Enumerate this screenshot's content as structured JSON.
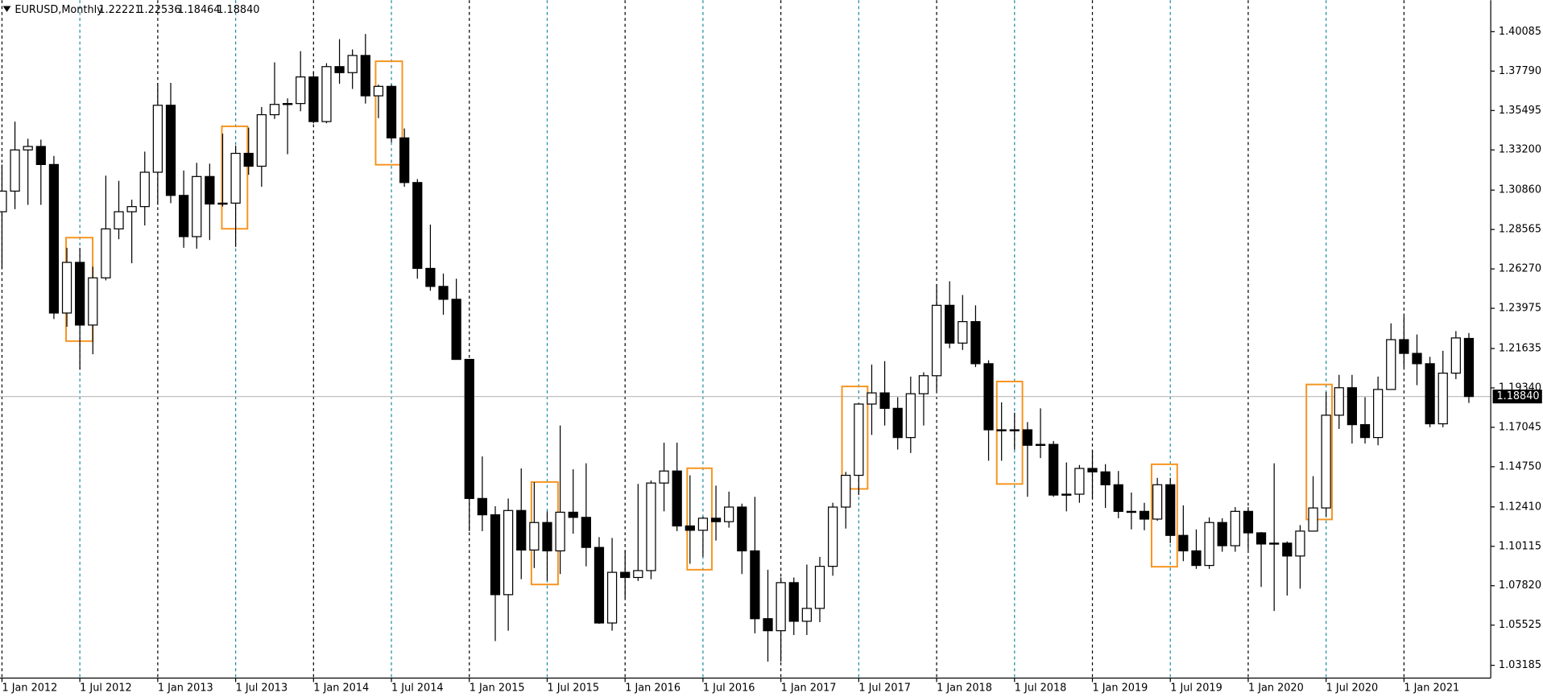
{
  "chart_data": {
    "type": "candlestick",
    "title": "EURUSD,Monthly",
    "header_labels": [
      "1.22221",
      "1.22536",
      "1.18464",
      "1.18840"
    ],
    "x": [
      "2012-01-01",
      "2012-02-01",
      "2012-03-01",
      "2012-04-01",
      "2012-05-01",
      "2012-06-01",
      "2012-07-01",
      "2012-08-01",
      "2012-09-01",
      "2012-10-01",
      "2012-11-01",
      "2012-12-01",
      "2013-01-01",
      "2013-02-01",
      "2013-03-01",
      "2013-04-01",
      "2013-05-01",
      "2013-06-01",
      "2013-07-01",
      "2013-08-01",
      "2013-09-01",
      "2013-10-01",
      "2013-11-01",
      "2013-12-01",
      "2014-01-01",
      "2014-02-01",
      "2014-03-01",
      "2014-04-01",
      "2014-05-01",
      "2014-06-01",
      "2014-07-01",
      "2014-08-01",
      "2014-09-01",
      "2014-10-01",
      "2014-11-01",
      "2014-12-01",
      "2015-01-01",
      "2015-02-01",
      "2015-03-01",
      "2015-04-01",
      "2015-05-01",
      "2015-06-01",
      "2015-07-01",
      "2015-08-01",
      "2015-09-01",
      "2015-10-01",
      "2015-11-01",
      "2015-12-01",
      "2016-01-01",
      "2016-02-01",
      "2016-03-01",
      "2016-04-01",
      "2016-05-01",
      "2016-06-01",
      "2016-07-01",
      "2016-08-01",
      "2016-09-01",
      "2016-10-01",
      "2016-11-01",
      "2016-12-01",
      "2017-01-01",
      "2017-02-01",
      "2017-03-01",
      "2017-04-01",
      "2017-05-01",
      "2017-06-01",
      "2017-07-01",
      "2017-08-01",
      "2017-09-01",
      "2017-10-01",
      "2017-11-01",
      "2017-12-01",
      "2018-01-01",
      "2018-02-01",
      "2018-03-01",
      "2018-04-01",
      "2018-05-01",
      "2018-06-01",
      "2018-07-01",
      "2018-08-01",
      "2018-09-01",
      "2018-10-01",
      "2018-11-01",
      "2018-12-01",
      "2019-01-01",
      "2019-02-01",
      "2019-03-01",
      "2019-04-01",
      "2019-05-01",
      "2019-06-01",
      "2019-07-01",
      "2019-08-01",
      "2019-09-01",
      "2019-10-01",
      "2019-11-01",
      "2019-12-01",
      "2020-01-01",
      "2020-02-01",
      "2020-03-01",
      "2020-04-01",
      "2020-05-01",
      "2020-06-01",
      "2020-07-01",
      "2020-08-01",
      "2020-09-01",
      "2020-10-01",
      "2020-11-01",
      "2020-12-01",
      "2021-01-01",
      "2021-02-01",
      "2021-03-01",
      "2021-04-01",
      "2021-05-01",
      "2021-06-01"
    ],
    "open": [
      1.296,
      1.308,
      1.332,
      1.334,
      1.3235,
      1.237,
      1.2665,
      1.23,
      1.2575,
      1.286,
      1.296,
      1.299,
      1.319,
      1.358,
      1.3055,
      1.2815,
      1.3165,
      1.3005,
      1.301,
      1.33,
      1.3225,
      1.3525,
      1.3585,
      1.359,
      1.3745,
      1.3485,
      1.3805,
      1.377,
      1.387,
      1.3635,
      1.369,
      1.339,
      1.313,
      1.263,
      1.2525,
      1.245,
      1.21,
      1.129,
      1.1195,
      1.073,
      1.122,
      1.099,
      1.115,
      1.0985,
      1.121,
      1.118,
      1.1005,
      1.0565,
      1.086,
      1.083,
      1.087,
      1.138,
      1.145,
      1.113,
      1.1105,
      1.1175,
      1.1155,
      1.124,
      1.0985,
      1.059,
      1.052,
      1.08,
      1.0575,
      1.065,
      1.0895,
      1.124,
      1.1425,
      1.184,
      1.1905,
      1.1815,
      1.1645,
      1.19,
      1.2005,
      1.2415,
      1.2195,
      1.232,
      1.2075,
      1.169,
      1.1685,
      1.169,
      1.16,
      1.1605,
      1.131,
      1.1315,
      1.1465,
      1.1445,
      1.137,
      1.1215,
      1.1215,
      1.117,
      1.137,
      1.1075,
      1.0985,
      1.09,
      1.115,
      1.1015,
      1.1215,
      1.109,
      1.1025,
      1.103,
      1.0955,
      1.11,
      1.1235,
      1.1775,
      1.1935,
      1.172,
      1.1645,
      1.1925,
      1.2215,
      1.2135,
      1.2075,
      1.1725,
      1.202,
      1.22221
    ],
    "high": [
      1.3235,
      1.3485,
      1.3385,
      1.338,
      1.3285,
      1.275,
      1.275,
      1.264,
      1.317,
      1.314,
      1.303,
      1.331,
      1.371,
      1.371,
      1.32,
      1.3245,
      1.324,
      1.3415,
      1.3345,
      1.345,
      1.357,
      1.383,
      1.362,
      1.3895,
      1.3775,
      1.3825,
      1.3965,
      1.3905,
      1.3995,
      1.37,
      1.37,
      1.3445,
      1.315,
      1.2885,
      1.26,
      1.257,
      1.21,
      1.1535,
      1.1245,
      1.129,
      1.1465,
      1.1385,
      1.1215,
      1.1715,
      1.146,
      1.1495,
      1.1065,
      1.106,
      1.099,
      1.1375,
      1.1395,
      1.1615,
      1.1615,
      1.1425,
      1.1185,
      1.1365,
      1.133,
      1.126,
      1.13,
      1.0875,
      1.083,
      1.083,
      1.0905,
      1.095,
      1.1265,
      1.1445,
      1.1845,
      1.207,
      1.209,
      1.188,
      1.2,
      1.2025,
      1.2535,
      1.2555,
      1.2475,
      1.2415,
      1.2095,
      1.185,
      1.179,
      1.1735,
      1.1815,
      1.1625,
      1.15,
      1.1485,
      1.157,
      1.149,
      1.145,
      1.1325,
      1.1265,
      1.141,
      1.141,
      1.125,
      1.111,
      1.118,
      1.1175,
      1.124,
      1.124,
      1.1095,
      1.1495,
      1.104,
      1.1135,
      1.142,
      1.191,
      1.201,
      1.201,
      1.188,
      1.2,
      1.231,
      1.235,
      1.2245,
      1.2115,
      1.215,
      1.2265,
      1.22536
    ],
    "low": [
      1.2625,
      1.2975,
      1.3,
      1.3,
      1.2335,
      1.229,
      1.204,
      1.213,
      1.256,
      1.28,
      1.266,
      1.288,
      1.3,
      1.301,
      1.275,
      1.2745,
      1.2795,
      1.299,
      1.2755,
      1.3175,
      1.3105,
      1.35,
      1.3295,
      1.3545,
      1.3475,
      1.3475,
      1.3705,
      1.3675,
      1.359,
      1.3505,
      1.3365,
      1.3105,
      1.257,
      1.25,
      1.236,
      1.21,
      1.11,
      1.11,
      1.046,
      1.052,
      1.082,
      1.0885,
      1.081,
      1.085,
      1.1085,
      1.0895,
      1.056,
      1.052,
      1.071,
      1.081,
      1.082,
      1.1215,
      1.11,
      1.091,
      1.095,
      1.1045,
      1.112,
      1.085,
      1.0505,
      1.034,
      1.034,
      1.0495,
      1.0495,
      1.057,
      1.084,
      1.1115,
      1.131,
      1.166,
      1.1715,
      1.1575,
      1.1555,
      1.1715,
      1.1915,
      1.2165,
      1.2155,
      1.2055,
      1.151,
      1.151,
      1.1575,
      1.13,
      1.1525,
      1.13,
      1.1215,
      1.1265,
      1.129,
      1.1235,
      1.1175,
      1.111,
      1.1105,
      1.116,
      1.103,
      1.0925,
      1.088,
      1.088,
      1.098,
      1.098,
      1.099,
      1.0775,
      1.0635,
      1.0725,
      1.0765,
      1.11,
      1.1185,
      1.1695,
      1.161,
      1.161,
      1.16,
      1.1925,
      1.2055,
      1.195,
      1.1705,
      1.1705,
      1.1985,
      1.18464
    ],
    "close": [
      1.308,
      1.332,
      1.334,
      1.3235,
      1.237,
      1.2665,
      1.23,
      1.2575,
      1.286,
      1.296,
      1.299,
      1.319,
      1.358,
      1.3055,
      1.2815,
      1.3165,
      1.3005,
      1.301,
      1.33,
      1.3225,
      1.3525,
      1.3585,
      1.359,
      1.3745,
      1.3485,
      1.3805,
      1.377,
      1.387,
      1.3635,
      1.369,
      1.339,
      1.313,
      1.263,
      1.2525,
      1.245,
      1.21,
      1.129,
      1.1195,
      1.073,
      1.122,
      1.099,
      1.115,
      1.0985,
      1.121,
      1.118,
      1.1005,
      1.0565,
      1.086,
      1.083,
      1.087,
      1.138,
      1.145,
      1.113,
      1.1105,
      1.1175,
      1.1155,
      1.124,
      1.0985,
      1.059,
      1.052,
      1.08,
      1.0575,
      1.065,
      1.0895,
      1.124,
      1.1425,
      1.184,
      1.1905,
      1.1815,
      1.1645,
      1.19,
      1.2005,
      1.2415,
      1.2195,
      1.232,
      1.2075,
      1.169,
      1.1685,
      1.169,
      1.16,
      1.1605,
      1.131,
      1.1315,
      1.1465,
      1.1445,
      1.137,
      1.1215,
      1.1215,
      1.117,
      1.137,
      1.1075,
      1.0985,
      1.09,
      1.115,
      1.1015,
      1.1215,
      1.109,
      1.1025,
      1.103,
      1.0955,
      1.11,
      1.1235,
      1.1775,
      1.1935,
      1.172,
      1.1645,
      1.1925,
      1.2215,
      1.2135,
      1.2075,
      1.1725,
      1.202,
      1.2225,
      1.1884
    ],
    "up_color": "#ffffff",
    "down_color": "#000000",
    "outline_color": "#000000",
    "price_line_color": "#c0c0c0",
    "xgrid_colors": [
      "#000000",
      "#1b8aa0"
    ],
    "ylim": [
      1.0244,
      1.4192
    ],
    "yticks": [
      1.40085,
      {
        "value": 1.3779,
        "label": "1.37790"
      },
      1.35495,
      {
        "value": 1.332,
        "label": "1.33200"
      },
      {
        "value": 1.3086,
        "label": "1.30860"
      },
      1.28565,
      {
        "value": 1.2627,
        "label": "1.26270"
      },
      1.23975,
      1.21635,
      {
        "value": 1.1934,
        "label": "1.19340"
      },
      1.17045,
      {
        "value": 1.1475,
        "label": "1.14750"
      },
      {
        "value": 1.1241,
        "label": "1.12410"
      },
      1.10115,
      {
        "value": 1.0782,
        "label": "1.07820"
      },
      1.05525,
      1.03185
    ],
    "xticks": [
      {
        "value": "2012-01-01",
        "label": "1 Jan 2012"
      },
      {
        "value": "2012-07-01",
        "label": "1 Jul 2012"
      },
      {
        "value": "2013-01-01",
        "label": "1 Jan 2013"
      },
      {
        "value": "2013-07-01",
        "label": "1 Jul 2013"
      },
      {
        "value": "2014-01-01",
        "label": "1 Jan 2014"
      },
      {
        "value": "2014-07-01",
        "label": "1 Jul 2014"
      },
      {
        "value": "2015-01-01",
        "label": "1 Jan 2015"
      },
      {
        "value": "2015-07-01",
        "label": "1 Jul 2015"
      },
      {
        "value": "2016-01-01",
        "label": "1 Jan 2016"
      },
      {
        "value": "2016-07-01",
        "label": "1 Jul 2016"
      },
      {
        "value": "2017-01-01",
        "label": "1 Jan 2017"
      },
      {
        "value": "2017-07-01",
        "label": "1 Jul 2017"
      },
      {
        "value": "2018-01-01",
        "label": "1 Jan 2018"
      },
      {
        "value": "2018-07-01",
        "label": "1 Jul 2018"
      },
      {
        "value": "2019-01-01",
        "label": "1 Jan 2019"
      },
      {
        "value": "2019-07-01",
        "label": "1 Jul 2019"
      },
      {
        "value": "2020-01-01",
        "label": "1 Jan 2020"
      },
      {
        "value": "2020-07-01",
        "label": "1 Jul 2020"
      },
      {
        "value": "2021-01-01",
        "label": "1 Jan 2021"
      }
    ],
    "grid": true
  }
}
